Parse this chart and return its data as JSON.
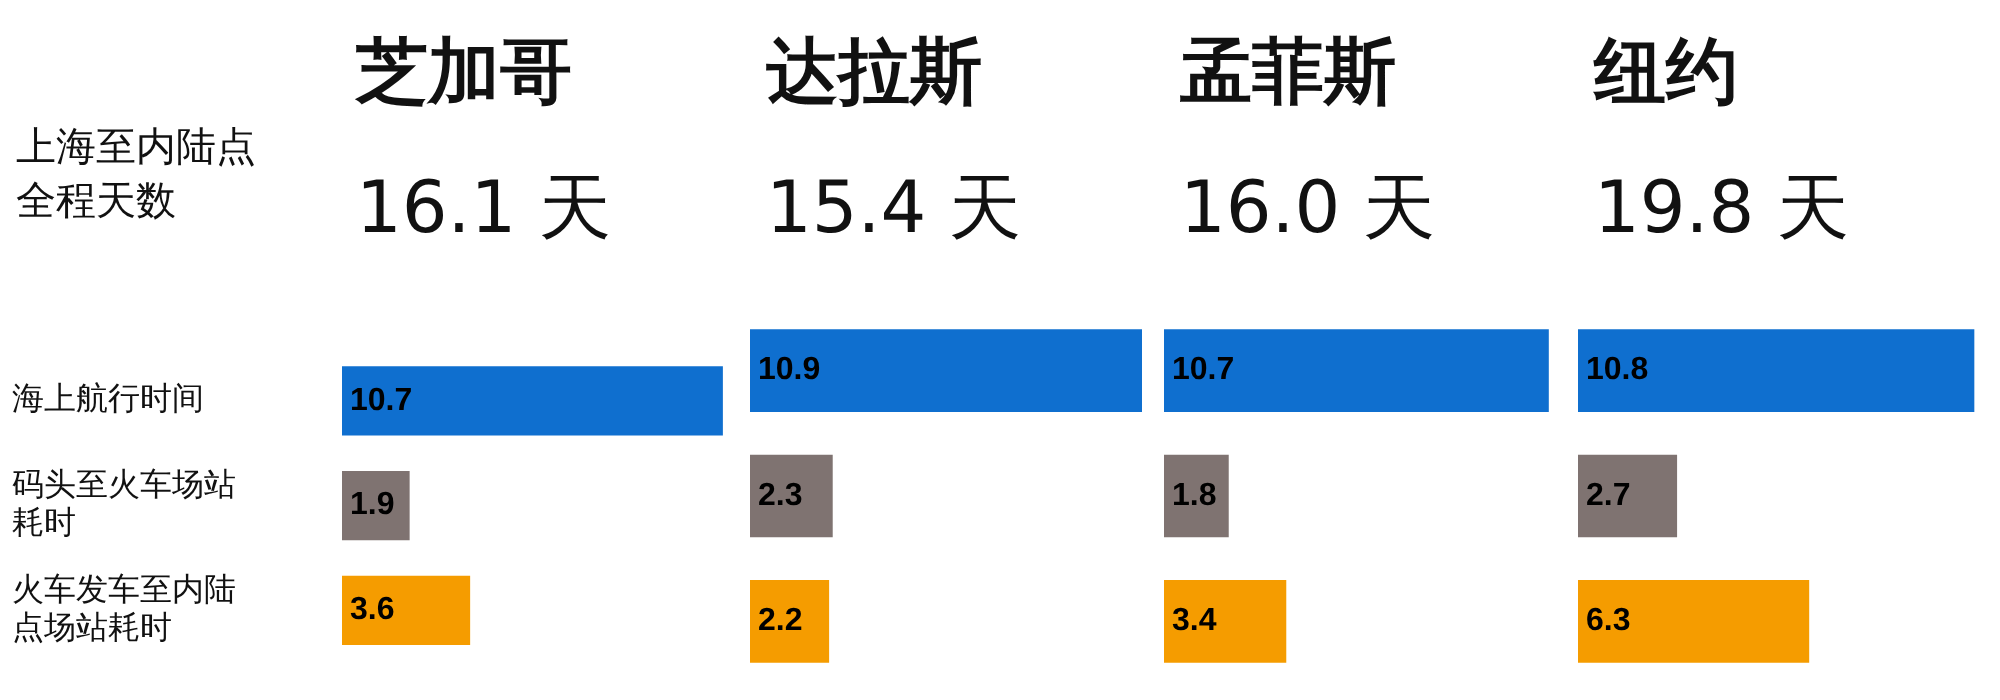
{
  "chart_data": [
    {
      "type": "bar",
      "orientation": "horizontal",
      "title": "芝加哥",
      "subtitle": "16.1 天",
      "annotations": [
        "上海至内陆点全程天数"
      ],
      "categories": [
        "海上航行时间",
        "码头至火车场站耗时",
        "火车发车至内陆点场站耗时"
      ],
      "values": [
        10.7,
        1.9,
        3.6
      ],
      "colors": [
        "#0f6fcf",
        "#7f7371",
        "#f59c00"
      ],
      "data_labels": true,
      "tick_labels": "y"
    },
    {
      "type": "bar",
      "orientation": "horizontal",
      "title": "达拉斯",
      "subtitle": "15.4 天",
      "categories": [
        null,
        null,
        null
      ],
      "values": [
        10.9,
        2.3,
        2.2
      ],
      "colors": [
        "#0f6fcf",
        "#7f7371",
        "#f59c00"
      ],
      "data_labels": true,
      "tick_labels": false
    },
    {
      "type": "bar",
      "orientation": "horizontal",
      "title": "孟菲斯",
      "subtitle": "16.0 天",
      "categories": [
        null,
        null,
        null
      ],
      "values": [
        10.7,
        1.8,
        3.4
      ],
      "colors": [
        "#0f6fcf",
        "#7f7371",
        "#f59c00"
      ],
      "data_labels": true,
      "tick_labels": false
    },
    {
      "type": "bar",
      "orientation": "horizontal",
      "title": "纽约",
      "subtitle": "19.8 天",
      "categories": [
        null,
        null,
        null
      ],
      "values": [
        10.8,
        2.7,
        6.3
      ],
      "colors": [
        "#0f6fcf",
        "#7f7371",
        "#f59c00"
      ],
      "data_labels": true,
      "tick_labels": false
    }
  ]
}
